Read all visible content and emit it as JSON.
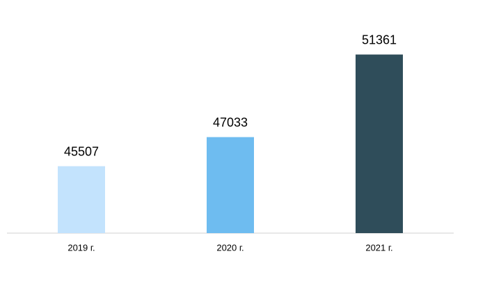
{
  "chart_data": {
    "type": "bar",
    "categories": [
      "2019 г.",
      "2020 г.",
      "2021 г."
    ],
    "values": [
      45507,
      47033,
      51361
    ],
    "colors": [
      "#c3e3fd",
      "#6ebcf0",
      "#2f4d5a"
    ],
    "ylim": [
      42000,
      52000
    ],
    "grid": false
  }
}
